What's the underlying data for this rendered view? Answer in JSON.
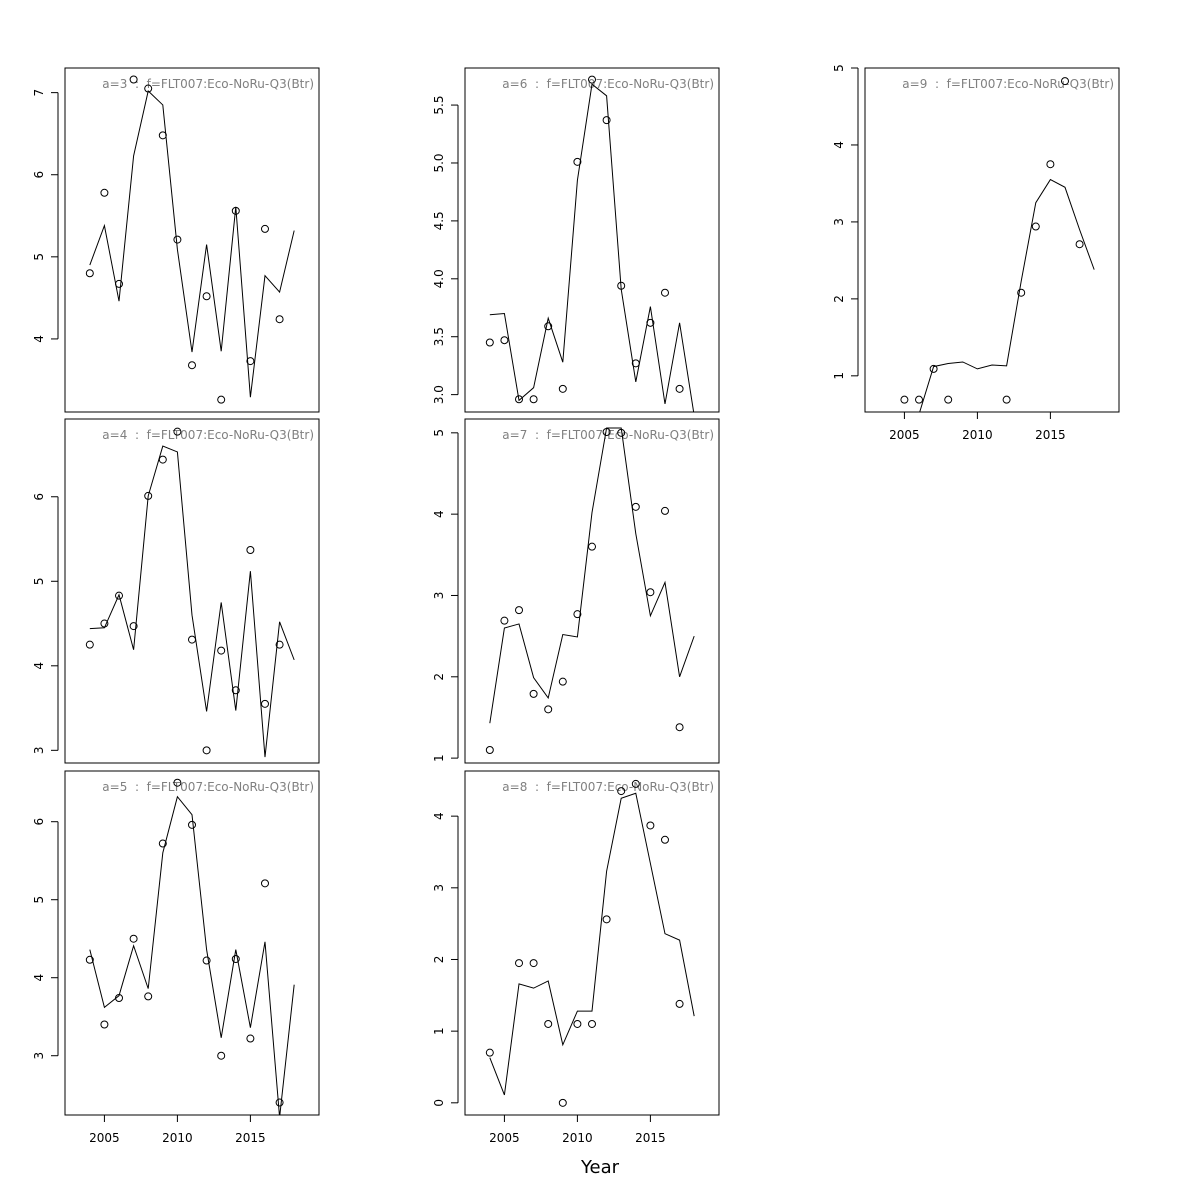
{
  "xlabel": "Year",
  "chart_data": [
    {
      "type": "line",
      "title": "a=3  :  f=FLT007:Eco-NoRu-Q3(Btr)",
      "x": [
        2004,
        2005,
        2006,
        2007,
        2008,
        2009,
        2010,
        2011,
        2012,
        2013,
        2014,
        2015,
        2016,
        2017,
        2018
      ],
      "xlim": [
        2002.3,
        2019.7
      ],
      "ylim": [
        3.11,
        7.3
      ],
      "yticks": [
        4,
        5,
        6,
        7
      ],
      "series": [
        {
          "style": "line",
          "color": "#000000",
          "values": [
            4.9,
            5.38,
            4.46,
            6.23,
            7.02,
            6.85,
            5.09,
            3.84,
            5.15,
            3.85,
            5.61,
            3.29,
            4.77,
            4.57,
            5.32
          ]
        },
        {
          "style": "points",
          "color": "#000000",
          "values": [
            4.8,
            5.78,
            4.67,
            7.16,
            7.05,
            6.48,
            5.21,
            3.68,
            4.52,
            3.26,
            5.56,
            3.73,
            5.34,
            4.24,
            null
          ]
        }
      ]
    },
    {
      "type": "line",
      "title": "a=4  :  f=FLT007:Eco-NoRu-Q3(Btr)",
      "x": [
        2004,
        2005,
        2006,
        2007,
        2008,
        2009,
        2010,
        2011,
        2012,
        2013,
        2014,
        2015,
        2016,
        2017,
        2018
      ],
      "xlim": [
        2002.3,
        2019.7
      ],
      "ylim": [
        2.85,
        6.92
      ],
      "yticks": [
        3,
        4,
        5,
        6
      ],
      "series": [
        {
          "style": "line",
          "color": "#000000",
          "values": [
            4.44,
            4.45,
            4.84,
            4.19,
            6.01,
            6.6,
            6.53,
            4.6,
            3.46,
            4.75,
            3.47,
            5.12,
            2.92,
            4.52,
            4.07
          ]
        },
        {
          "style": "points",
          "color": "#000000",
          "values": [
            4.25,
            4.5,
            4.83,
            4.47,
            6.01,
            6.44,
            6.77,
            4.31,
            3.0,
            4.18,
            3.71,
            5.37,
            3.55,
            4.25,
            null
          ]
        }
      ]
    },
    {
      "type": "line",
      "title": "a=5  :  f=FLT007:Eco-NoRu-Q3(Btr)",
      "x": [
        2004,
        2005,
        2006,
        2007,
        2008,
        2009,
        2010,
        2011,
        2012,
        2013,
        2014,
        2015,
        2016,
        2017,
        2018
      ],
      "xlim": [
        2002.3,
        2019.7
      ],
      "ylim": [
        2.24,
        6.65
      ],
      "yticks": [
        3,
        4,
        5,
        6
      ],
      "xticks": [
        2005,
        2010,
        2015
      ],
      "series": [
        {
          "style": "line",
          "color": "#000000",
          "values": [
            4.36,
            3.62,
            3.77,
            4.41,
            3.86,
            5.6,
            6.32,
            6.09,
            4.36,
            3.23,
            4.36,
            3.36,
            4.46,
            2.21,
            3.91
          ]
        },
        {
          "style": "points",
          "color": "#000000",
          "values": [
            4.23,
            3.4,
            3.74,
            4.5,
            3.76,
            5.72,
            6.5,
            5.96,
            4.22,
            3.0,
            4.24,
            3.22,
            5.21,
            2.4,
            null
          ]
        }
      ]
    },
    {
      "type": "line",
      "title": "a=6  :  f=FLT007:Eco-NoRu-Q3(Btr)",
      "x": [
        2004,
        2005,
        2006,
        2007,
        2008,
        2009,
        2010,
        2011,
        2012,
        2013,
        2014,
        2015,
        2016,
        2017,
        2018
      ],
      "xlim": [
        2002.3,
        2019.7
      ],
      "ylim": [
        2.85,
        5.82
      ],
      "yticks": [
        {
          "value": 3,
          "label": "3.0"
        },
        3.5,
        {
          "value": 4,
          "label": "4.0"
        },
        4.5,
        {
          "value": 5,
          "label": "5.0"
        },
        5.5
      ],
      "series": [
        {
          "style": "line",
          "color": "#000000",
          "values": [
            3.69,
            3.7,
            2.95,
            3.06,
            3.66,
            3.28,
            4.85,
            5.68,
            5.58,
            3.91,
            3.11,
            3.76,
            2.92,
            3.62,
            2.82
          ]
        },
        {
          "style": "points",
          "color": "#000000",
          "values": [
            3.45,
            3.47,
            2.96,
            2.96,
            3.59,
            3.05,
            5.01,
            5.72,
            5.37,
            3.94,
            3.27,
            3.62,
            3.88,
            3.05,
            null
          ]
        }
      ]
    },
    {
      "type": "line",
      "title": "a=7  :  f=FLT007:Eco-NoRu-Q3(Btr)",
      "x": [
        2004,
        2005,
        2006,
        2007,
        2008,
        2009,
        2010,
        2011,
        2012,
        2013,
        2014,
        2015,
        2016,
        2017,
        2018
      ],
      "xlim": [
        2002.3,
        2019.7
      ],
      "ylim": [
        0.94,
        5.17
      ],
      "yticks": [
        1,
        2,
        3,
        4,
        5
      ],
      "series": [
        {
          "style": "line",
          "color": "#000000",
          "values": [
            1.43,
            2.6,
            2.65,
            1.99,
            1.74,
            2.52,
            2.49,
            4.02,
            5.06,
            5.06,
            3.76,
            2.75,
            3.16,
            2.0,
            2.5
          ]
        },
        {
          "style": "points",
          "color": "#000000",
          "values": [
            1.1,
            2.69,
            2.82,
            1.79,
            1.6,
            1.94,
            2.77,
            3.6,
            5.01,
            5.0,
            4.09,
            3.04,
            4.04,
            1.38,
            null
          ]
        }
      ]
    },
    {
      "type": "line",
      "title": "a=8  :  f=FLT007:Eco-NoRu-Q3(Btr)",
      "x": [
        2004,
        2005,
        2006,
        2007,
        2008,
        2009,
        2010,
        2011,
        2012,
        2013,
        2014,
        2015,
        2016,
        2017,
        2018
      ],
      "xlim": [
        2002.3,
        2019.7
      ],
      "ylim": [
        -0.17,
        4.63
      ],
      "yticks": [
        0,
        1,
        2,
        3,
        4
      ],
      "xticks": [
        2005,
        2010,
        2015
      ],
      "series": [
        {
          "style": "line",
          "color": "#000000",
          "values": [
            0.63,
            0.11,
            1.66,
            1.6,
            1.7,
            0.81,
            1.28,
            1.28,
            3.23,
            4.25,
            4.32,
            3.34,
            2.36,
            2.27,
            1.21
          ]
        },
        {
          "style": "points",
          "color": "#000000",
          "values": [
            0.7,
            null,
            1.95,
            1.95,
            1.1,
            0.0,
            1.1,
            1.1,
            2.56,
            4.35,
            4.45,
            3.87,
            3.67,
            1.38,
            null
          ]
        }
      ]
    },
    {
      "type": "line",
      "title": "a=9  :  f=FLT007:Eco-NoRu-Q3(Btr)",
      "x": [
        2004,
        2005,
        2006,
        2007,
        2008,
        2009,
        2010,
        2011,
        2012,
        2013,
        2014,
        2015,
        2016,
        2017,
        2018
      ],
      "xlim": [
        2002.3,
        2019.7
      ],
      "ylim": [
        0.53,
        5
      ],
      "yticks": [
        1,
        2,
        3,
        4,
        5
      ],
      "xticks": [
        2005,
        2010,
        2015
      ],
      "series": [
        {
          "style": "line",
          "color": "#000000",
          "values": [
            null,
            null,
            0.5,
            1.12,
            1.16,
            1.18,
            1.09,
            1.14,
            1.13,
            2.23,
            3.25,
            3.55,
            3.45,
            2.9,
            2.38
          ]
        },
        {
          "style": "points",
          "color": "#000000",
          "values": [
            null,
            0.69,
            0.69,
            1.09,
            0.69,
            null,
            null,
            null,
            0.69,
            2.08,
            2.94,
            3.75,
            4.83,
            2.71,
            null
          ]
        }
      ]
    }
  ]
}
